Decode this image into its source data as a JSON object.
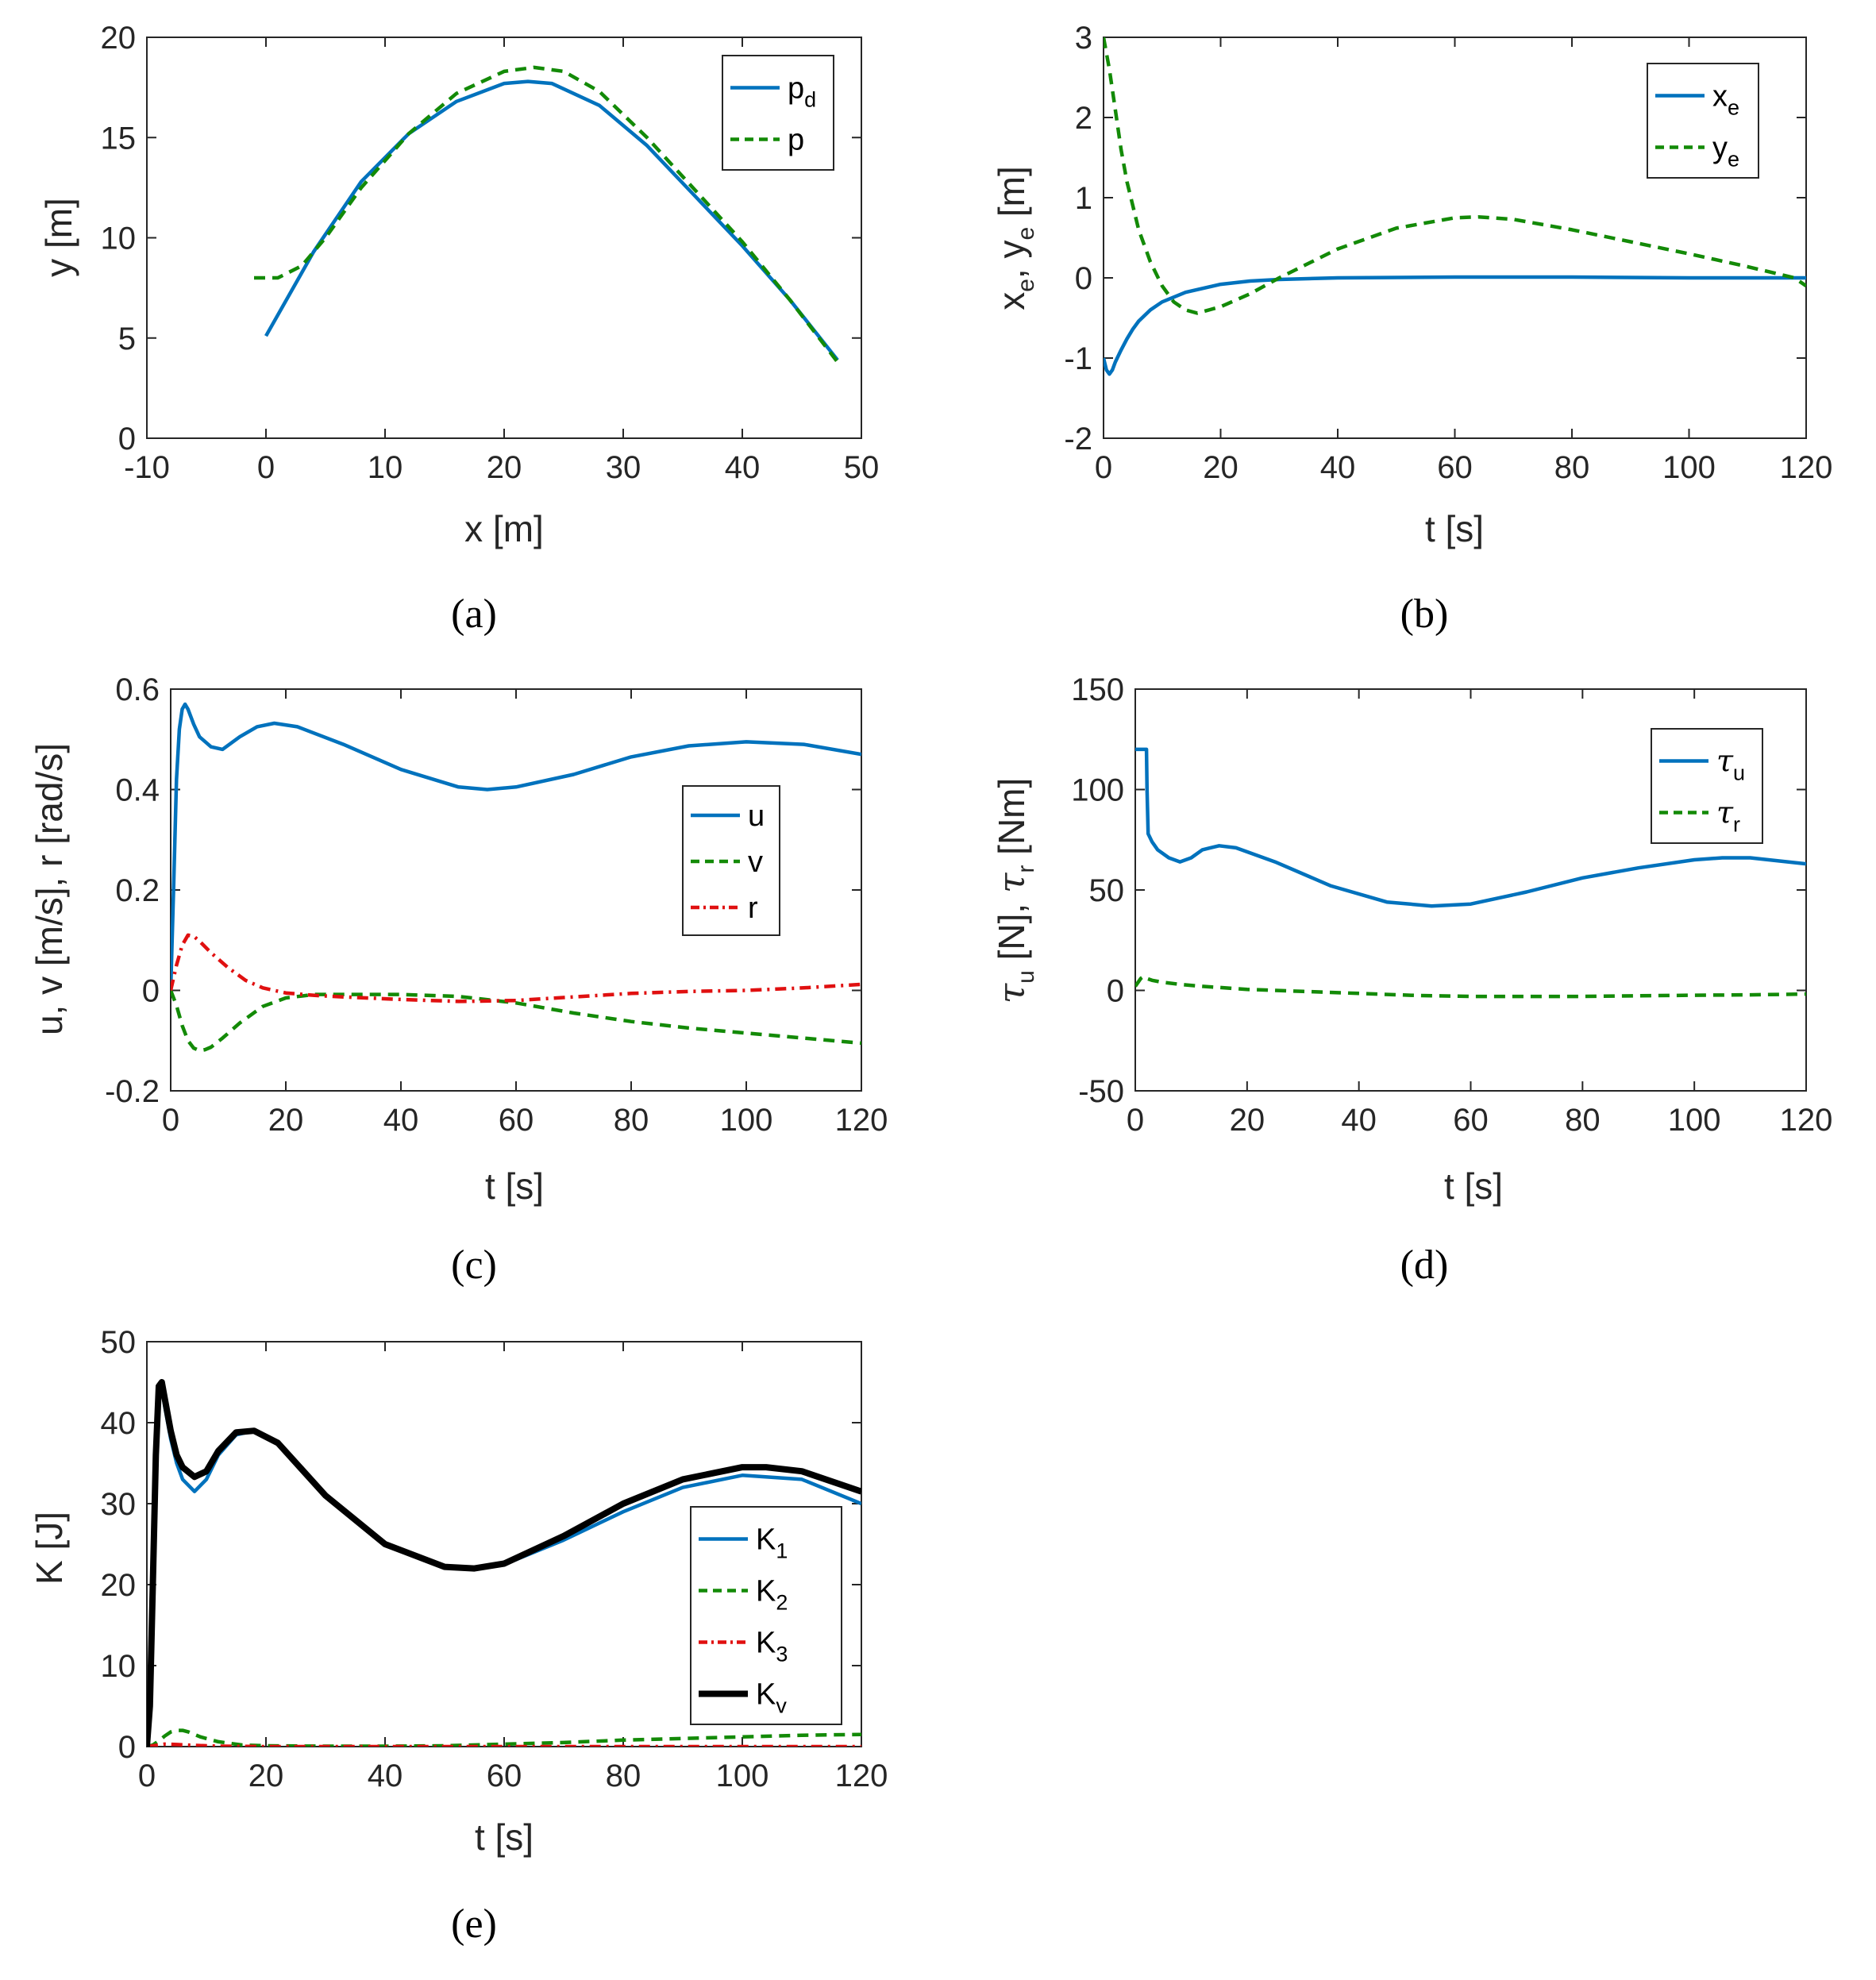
{
  "colors": {
    "blue": "#0072BD",
    "green": "#138A07",
    "red": "#E01010",
    "black": "#000000"
  },
  "chart_data": [
    {
      "type": "line",
      "caption": "(a)",
      "xlabel": "x [m]",
      "ylabel": "y [m]",
      "xlim": [
        -10,
        50
      ],
      "ylim": [
        0,
        20
      ],
      "xticks": [
        "-10",
        "0",
        "10",
        "20",
        "30",
        "40",
        "50"
      ],
      "yticks": [
        "0",
        "5",
        "10",
        "15",
        "20"
      ],
      "legend": "top-right",
      "series": [
        {
          "name": "p",
          "sub": "d",
          "style": "solid",
          "color": "blue",
          "x": [
            0,
            4,
            8,
            12,
            16,
            20,
            22,
            24,
            28,
            32,
            36,
            40,
            44,
            48
          ],
          "y": [
            5.1,
            9.3,
            12.8,
            15.2,
            16.8,
            17.7,
            17.8,
            17.7,
            16.6,
            14.6,
            12.1,
            9.6,
            6.9,
            3.9
          ]
        },
        {
          "name": "p",
          "sub": "",
          "style": "dashed",
          "color": "green",
          "x": [
            -1,
            1,
            3,
            5,
            8,
            12,
            16,
            20,
            22.5,
            25,
            28,
            32,
            36,
            40,
            44,
            48
          ],
          "y": [
            8.0,
            8.0,
            8.6,
            10.0,
            12.5,
            15.2,
            17.2,
            18.3,
            18.5,
            18.3,
            17.3,
            15.0,
            12.4,
            9.8,
            6.9,
            3.8
          ]
        }
      ]
    },
    {
      "type": "line",
      "caption": "(b)",
      "xlabel": "t [s]",
      "ylabel": "x",
      "ylabel_sub1": "e",
      "ylabel_mid": ", y",
      "ylabel_sub2": "e",
      "ylabel_tail": " [m]",
      "xlim": [
        0,
        120
      ],
      "ylim": [
        -2,
        3
      ],
      "xticks": [
        "0",
        "20",
        "40",
        "60",
        "80",
        "100",
        "120"
      ],
      "yticks": [
        "-2",
        "-1",
        "0",
        "1",
        "2",
        "3"
      ],
      "legend": "top-right",
      "series": [
        {
          "name": "x",
          "sub": "e",
          "style": "solid",
          "color": "blue",
          "x": [
            0,
            0.5,
            1,
            1.5,
            2,
            3,
            4,
            5,
            6,
            8,
            10,
            14,
            20,
            25,
            30,
            40,
            60,
            80,
            100,
            120
          ],
          "y": [
            -1.0,
            -1.15,
            -1.2,
            -1.15,
            -1.05,
            -0.9,
            -0.76,
            -0.64,
            -0.54,
            -0.4,
            -0.3,
            -0.18,
            -0.08,
            -0.04,
            -0.02,
            0.0,
            0.01,
            0.01,
            0.0,
            0.0
          ]
        },
        {
          "name": "y",
          "sub": "e",
          "style": "dashed",
          "color": "green",
          "x": [
            0,
            1,
            2,
            3,
            4,
            6,
            8,
            10,
            12,
            14,
            16,
            20,
            25,
            30,
            40,
            50,
            60,
            64,
            70,
            80,
            90,
            100,
            110,
            118,
            120
          ],
          "y": [
            3.0,
            2.6,
            2.1,
            1.6,
            1.2,
            0.6,
            0.2,
            -0.1,
            -0.3,
            -0.4,
            -0.44,
            -0.36,
            -0.2,
            0.0,
            0.36,
            0.62,
            0.75,
            0.76,
            0.73,
            0.6,
            0.45,
            0.3,
            0.14,
            0.0,
            -0.1
          ]
        }
      ]
    },
    {
      "type": "line",
      "caption": "(c)",
      "xlabel": "t [s]",
      "ylabel": "u, v [m/s], r [rad/s]",
      "xlim": [
        0,
        120
      ],
      "ylim": [
        -0.2,
        0.6
      ],
      "xticks": [
        "0",
        "20",
        "40",
        "60",
        "80",
        "100",
        "120"
      ],
      "yticks": [
        "-0.2",
        "0",
        "0.2",
        "0.4",
        "0.6"
      ],
      "legend": "right",
      "series": [
        {
          "name": "u",
          "sub": "",
          "style": "solid",
          "color": "blue",
          "x": [
            0,
            0.5,
            1,
            1.5,
            2,
            2.5,
            3,
            4,
            5,
            7,
            9,
            12,
            15,
            18,
            22,
            30,
            40,
            50,
            55,
            60,
            70,
            80,
            90,
            100,
            110,
            120
          ],
          "y": [
            0,
            0.2,
            0.42,
            0.52,
            0.56,
            0.57,
            0.56,
            0.53,
            0.505,
            0.485,
            0.48,
            0.505,
            0.525,
            0.532,
            0.525,
            0.49,
            0.44,
            0.405,
            0.4,
            0.405,
            0.43,
            0.465,
            0.487,
            0.495,
            0.49,
            0.47
          ]
        },
        {
          "name": "v",
          "sub": "",
          "style": "dashed",
          "color": "green",
          "x": [
            0,
            1,
            2,
            3,
            4,
            5,
            6,
            7,
            9,
            12,
            16,
            20,
            25,
            30,
            40,
            50,
            60,
            70,
            80,
            90,
            100,
            110,
            120
          ],
          "y": [
            0,
            -0.03,
            -0.07,
            -0.1,
            -0.115,
            -0.12,
            -0.118,
            -0.113,
            -0.095,
            -0.065,
            -0.032,
            -0.015,
            -0.008,
            -0.008,
            -0.008,
            -0.012,
            -0.025,
            -0.045,
            -0.062,
            -0.075,
            -0.085,
            -0.095,
            -0.105
          ]
        },
        {
          "name": "r",
          "sub": "",
          "style": "dashdot",
          "color": "red",
          "x": [
            0,
            1,
            2,
            3,
            4,
            5,
            7,
            10,
            13,
            16,
            20,
            25,
            30,
            40,
            50,
            60,
            70,
            80,
            90,
            100,
            110,
            120
          ],
          "y": [
            0,
            0.05,
            0.09,
            0.11,
            0.108,
            0.098,
            0.075,
            0.045,
            0.02,
            0.005,
            -0.005,
            -0.01,
            -0.013,
            -0.018,
            -0.022,
            -0.02,
            -0.013,
            -0.006,
            -0.002,
            0.0,
            0.005,
            0.012
          ]
        }
      ]
    },
    {
      "type": "line",
      "caption": "(d)",
      "xlabel": "t [s]",
      "ylabel_tau1": "τ",
      "ylabel_sub1": "u",
      "ylabel_mid": " [N], ",
      "ylabel_tau2": "τ",
      "ylabel_sub2": "r",
      "ylabel_tail": " [Nm]",
      "xlim": [
        0,
        120
      ],
      "ylim": [
        -50,
        150
      ],
      "xticks": [
        "0",
        "20",
        "40",
        "60",
        "80",
        "100",
        "120"
      ],
      "yticks": [
        "-50",
        "0",
        "50",
        "100",
        "150"
      ],
      "legend": "top-right",
      "series": [
        {
          "name": "τ",
          "sub": "u",
          "style": "solid",
          "color": "blue",
          "x": [
            0,
            0.5,
            1,
            1.5,
            2,
            2.1,
            2.3,
            3,
            4,
            6,
            8,
            10,
            12,
            15,
            18,
            25,
            35,
            45,
            53,
            60,
            70,
            80,
            90,
            100,
            105,
            110,
            120
          ],
          "y": [
            120,
            120,
            120,
            120,
            120,
            100,
            78,
            74,
            70,
            66,
            64,
            66,
            70,
            72,
            71,
            64,
            52,
            44,
            42,
            43,
            49,
            56,
            61,
            65,
            66,
            66,
            63
          ]
        },
        {
          "name": "τ",
          "sub": "r",
          "style": "dashed",
          "color": "green",
          "x": [
            0,
            1,
            1.5,
            2,
            3,
            5,
            8,
            12,
            20,
            30,
            40,
            50,
            60,
            70,
            80,
            90,
            100,
            110,
            120
          ],
          "y": [
            2,
            6,
            7,
            6,
            5,
            4,
            3,
            2,
            0.5,
            -0.5,
            -1.5,
            -2.5,
            -3,
            -3,
            -3,
            -2.7,
            -2.4,
            -2.2,
            -1.8
          ]
        }
      ]
    },
    {
      "type": "line",
      "caption": "(e)",
      "xlabel": "t [s]",
      "ylabel": "K [J]",
      "xlim": [
        0,
        120
      ],
      "ylim": [
        0,
        50
      ],
      "xticks": [
        "0",
        "20",
        "40",
        "60",
        "80",
        "100",
        "120"
      ],
      "yticks": [
        "0",
        "10",
        "20",
        "30",
        "40",
        "50"
      ],
      "legend": "right",
      "series": [
        {
          "name": "K",
          "sub": "1",
          "style": "solid",
          "color": "blue",
          "x": [
            0,
            0.5,
            1,
            1.5,
            2,
            2.5,
            3,
            4,
            5,
            6,
            8,
            10,
            12,
            15,
            18,
            22,
            30,
            40,
            50,
            55,
            60,
            70,
            80,
            90,
            100,
            110,
            120
          ],
          "y": [
            0,
            5,
            20,
            36,
            44,
            44.5,
            42,
            38,
            35,
            33,
            31.5,
            33,
            36,
            38.5,
            39,
            37.5,
            31,
            25,
            22.2,
            22,
            22.5,
            25.5,
            29,
            32,
            33.5,
            33,
            30
          ]
        },
        {
          "name": "K",
          "sub": "2",
          "style": "dashed",
          "color": "green",
          "x": [
            0,
            1,
            2,
            3,
            4,
            5,
            6,
            7,
            9,
            12,
            16,
            20,
            30,
            40,
            50,
            60,
            70,
            80,
            90,
            100,
            110,
            120
          ],
          "y": [
            0,
            0.2,
            0.7,
            1.3,
            1.8,
            2.0,
            2.0,
            1.8,
            1.2,
            0.6,
            0.2,
            0.1,
            0.05,
            0.05,
            0.1,
            0.3,
            0.5,
            0.8,
            1.0,
            1.2,
            1.4,
            1.5
          ]
        },
        {
          "name": "K",
          "sub": "3",
          "style": "dashdot",
          "color": "red",
          "x": [
            0,
            2,
            3,
            5,
            8,
            12,
            20,
            40,
            60,
            80,
            100,
            120
          ],
          "y": [
            0,
            0.2,
            0.3,
            0.25,
            0.15,
            0.05,
            0.0,
            0.0,
            0.0,
            0.0,
            0.0,
            0.0
          ]
        },
        {
          "name": "K",
          "sub": "v",
          "style": "solid-thick",
          "color": "black",
          "x": [
            0,
            0.5,
            1,
            1.5,
            2,
            2.5,
            3,
            4,
            5,
            6,
            8,
            10,
            12,
            15,
            18,
            22,
            30,
            40,
            50,
            55,
            60,
            70,
            80,
            90,
            100,
            104,
            110,
            120
          ],
          "y": [
            0,
            5,
            20,
            36,
            44.5,
            45,
            43,
            39,
            36,
            34.5,
            33.3,
            34,
            36.5,
            38.8,
            39,
            37.5,
            31,
            25,
            22.2,
            22,
            22.6,
            26,
            30,
            33,
            34.5,
            34.5,
            34,
            31.5
          ]
        }
      ]
    }
  ]
}
